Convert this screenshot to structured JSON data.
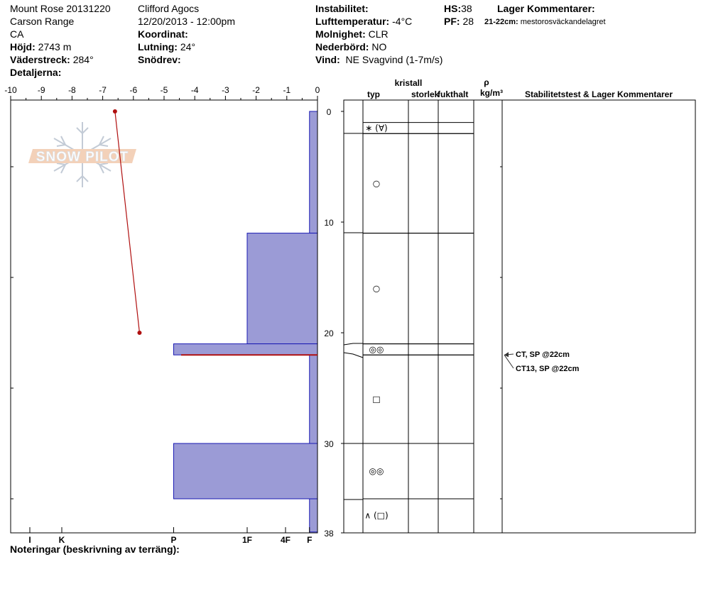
{
  "header": {
    "site": "Mount Rose 20131220",
    "range": "Carson Range",
    "state": "CA",
    "elevation_label": "Höjd:",
    "elevation_value": "2743 m",
    "aspect_label": "Väderstreck:",
    "aspect_value": "284°",
    "details_label": "Detaljerna:",
    "observer": "Clifford Agocs",
    "datetime": "12/20/2013 - 12:00pm",
    "coordinate_label": "Koordinat:",
    "slope_label": "Lutning:",
    "slope_value": "24°",
    "drift_label": "Snödrev:",
    "instability_label": "Instabilitet:",
    "air_temp_label": "Lufttemperatur:",
    "air_temp_value": "-4°C",
    "cloud_label": "Molnighet:",
    "cloud_value": "CLR",
    "precip_label": "Nederbörd:",
    "precip_value": "NO",
    "wind_label": "Vind:",
    "wind_value": "NE Svagvind (1-7m/s)",
    "hs_label": "HS:",
    "hs_value": "38",
    "pf_label": "PF:",
    "pf_value": "28",
    "layer_comments_label": "Lager Kommentarer:",
    "layer_comment_depth": "21-22cm:",
    "layer_comment_text": "mestorosväckandelagret"
  },
  "columns": {
    "kristall": "kristall",
    "typ": "typ",
    "storlek": "storlek",
    "fukthalt": "fukthalt",
    "rho": "ρ",
    "density_unit": "kg/m³",
    "stability": "Stabilitetstest & Lager Kommentarer"
  },
  "footer": {
    "notes_label": "Noteringar (beskrivning av terräng):"
  },
  "logo": {
    "text": "SNOW PILOT"
  },
  "chart_data": {
    "type": "snow-profile",
    "temperature_axis": {
      "ticks": [
        "-10",
        "-9",
        "-8",
        "-7",
        "-6",
        "-5",
        "-4",
        "-3",
        "-2",
        "-1",
        "0"
      ],
      "range": [
        -10,
        0
      ]
    },
    "depth_axis": {
      "ticks": [
        "0",
        "10",
        "20",
        "30",
        "38"
      ],
      "range": [
        0,
        38
      ]
    },
    "hardness_axis": {
      "labels": [
        "I",
        "K",
        "P",
        "1F",
        "4F",
        "F"
      ]
    },
    "hardness_scale": {
      "I": 9,
      "K": 8,
      "P": 4.5,
      "1F": 2.2,
      "4F": 1,
      "F": 0.25
    },
    "temperature_profile": [
      {
        "depth": 0,
        "temp": -6.6
      },
      {
        "depth": 20,
        "temp": -5.8
      }
    ],
    "hardness_layers": [
      {
        "top": 0,
        "bottom": 11,
        "hardness": "F"
      },
      {
        "top": 11,
        "bottom": 21,
        "hardness": "1F"
      },
      {
        "top": 21,
        "bottom": 22,
        "hardness": "P"
      },
      {
        "top": 22,
        "bottom": 30,
        "hardness": "F"
      },
      {
        "top": 30,
        "bottom": 35,
        "hardness": "P"
      },
      {
        "top": 35,
        "bottom": 38,
        "hardness": "F"
      }
    ],
    "weak_layer_depth": 22,
    "grain_layers": [
      {
        "top": 1,
        "bottom": 2,
        "glyph": "∗ (∀)"
      },
      {
        "top": 2,
        "bottom": 11,
        "glyph": "○"
      },
      {
        "top": 11,
        "bottom": 21,
        "glyph": "○"
      },
      {
        "top": 21,
        "bottom": 22,
        "glyph": "◎◎"
      },
      {
        "top": 22,
        "bottom": 30,
        "glyph": "□"
      },
      {
        "top": 30,
        "bottom": 35,
        "glyph": "◎◎"
      },
      {
        "top": 35,
        "bottom": 38,
        "glyph": "∧ (□)"
      }
    ],
    "stability_tests": [
      "CT, SP @22cm",
      "CT13, SP @22cm"
    ],
    "colors": {
      "hardness_fill": "#9b9bd6",
      "hardness_stroke": "#1a1ab3",
      "temperature": "#b01010",
      "weak_layer": "#b01010"
    }
  }
}
